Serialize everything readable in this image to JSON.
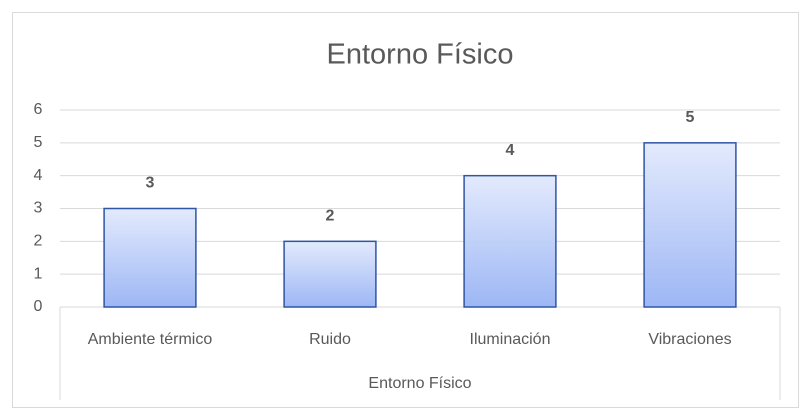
{
  "chart_data": {
    "type": "bar",
    "title": "Entorno Físico",
    "x_label": "Entorno Físico",
    "categories": [
      "Ambiente térmico",
      "Ruido",
      "Iluminación",
      "Vibraciones"
    ],
    "values": [
      3,
      2,
      4,
      5
    ],
    "color": "#9db7f5",
    "edge_color": "#2f55a4",
    "ylim": [
      0,
      6
    ],
    "yticks": [
      0,
      1,
      2,
      3,
      4,
      5,
      6
    ],
    "grid": true,
    "data_labels": true
  }
}
